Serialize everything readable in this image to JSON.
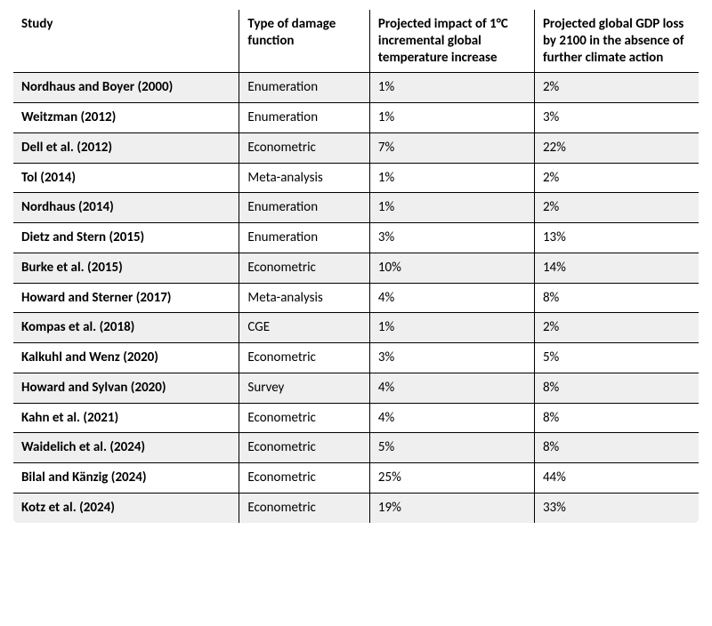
{
  "table": {
    "type": "table",
    "background_color": "#ffffff",
    "stripe_colors": [
      "#efefef",
      "#ffffff"
    ],
    "border_color": "#000000",
    "font_family": "Calibri, Arial, sans-serif",
    "header_fontsize": 15,
    "cell_fontsize": 15,
    "column_widths_pct": [
      33,
      19,
      24,
      24
    ],
    "columns": [
      "Study",
      "Type of damage function",
      "Projected impact of 1°C incremental global temperature increase",
      "Projected global GDP loss by 2100 in the absence of further climate action"
    ],
    "rows": [
      {
        "study": "Nordhaus and Boyer (2000)",
        "type": "Enumeration",
        "impact": "1%",
        "gdp_loss": "2%"
      },
      {
        "study": "Weitzman (2012)",
        "type": "Enumeration",
        "impact": "1%",
        "gdp_loss": "3%"
      },
      {
        "study": "Dell et al. (2012)",
        "type": "Econometric",
        "impact": "7%",
        "gdp_loss": "22%"
      },
      {
        "study": "Tol (2014)",
        "type": "Meta-analysis",
        "impact": "1%",
        "gdp_loss": "2%"
      },
      {
        "study": "Nordhaus (2014)",
        "type": "Enumeration",
        "impact": "1%",
        "gdp_loss": "2%"
      },
      {
        "study": "Dietz and Stern (2015)",
        "type": "Enumeration",
        "impact": "3%",
        "gdp_loss": "13%"
      },
      {
        "study": "Burke et al. (2015)",
        "type": "Econometric",
        "impact": "10%",
        "gdp_loss": "14%"
      },
      {
        "study": "Howard and Sterner (2017)",
        "type": "Meta-analysis",
        "impact": "4%",
        "gdp_loss": "8%"
      },
      {
        "study": "Kompas et al. (2018)",
        "type": "CGE",
        "impact": "1%",
        "gdp_loss": "2%"
      },
      {
        "study": "Kalkuhl and Wenz (2020)",
        "type": "Econometric",
        "impact": "3%",
        "gdp_loss": "5%"
      },
      {
        "study": "Howard and Sylvan (2020)",
        "type": "Survey",
        "impact": "4%",
        "gdp_loss": "8%"
      },
      {
        "study": "Kahn et al. (2021)",
        "type": "Econometric",
        "impact": "4%",
        "gdp_loss": "8%"
      },
      {
        "study": "Waidelich et al. (2024)",
        "type": "Econometric",
        "impact": "5%",
        "gdp_loss": "8%"
      },
      {
        "study": "Bilal and Känzig (2024)",
        "type": "Econometric",
        "impact": "25%",
        "gdp_loss": "44%"
      },
      {
        "study": "Kotz et al. (2024)",
        "type": "Econometric",
        "impact": "19%",
        "gdp_loss": "33%"
      }
    ]
  }
}
